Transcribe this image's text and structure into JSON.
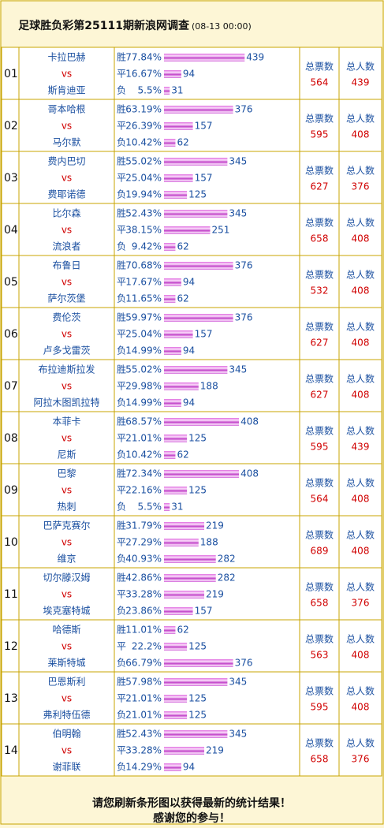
{
  "header": {
    "title": "足球胜负彩第25111期新浪网调查",
    "time": "(08-13 00:00)"
  },
  "outcome_labels": [
    "胜",
    "平",
    "负"
  ],
  "total_votes_label": "总票数",
  "total_people_label": "总人数",
  "vs": "vs",
  "matches": [
    {
      "no": "01",
      "home": "卡拉巴赫",
      "away": "斯肯迪亚",
      "pcts": [
        "77.84%",
        "16.67%",
        "5.5%"
      ],
      "counts": [
        439,
        94,
        31
      ],
      "total_votes": 564,
      "total_people": 439
    },
    {
      "no": "02",
      "home": "哥本哈根",
      "away": "马尔默",
      "pcts": [
        "63.19%",
        "26.39%",
        "10.42%"
      ],
      "counts": [
        376,
        157,
        62
      ],
      "total_votes": 595,
      "total_people": 408
    },
    {
      "no": "03",
      "home": "费内巴切",
      "away": "费耶诺德",
      "pcts": [
        "55.02%",
        "25.04%",
        "19.94%"
      ],
      "counts": [
        345,
        157,
        125
      ],
      "total_votes": 627,
      "total_people": 376
    },
    {
      "no": "04",
      "home": "比尔森",
      "away": "流浪者",
      "pcts": [
        "52.43%",
        "38.15%",
        "9.42%"
      ],
      "counts": [
        345,
        251,
        62
      ],
      "total_votes": 658,
      "total_people": 408
    },
    {
      "no": "05",
      "home": "布鲁日",
      "away": "萨尔茨堡",
      "pcts": [
        "70.68%",
        "17.67%",
        "11.65%"
      ],
      "counts": [
        376,
        94,
        62
      ],
      "total_votes": 532,
      "total_people": 408
    },
    {
      "no": "06",
      "home": "费伦茨",
      "away": "卢多戈雷茨",
      "pcts": [
        "59.97%",
        "25.04%",
        "14.99%"
      ],
      "counts": [
        376,
        157,
        94
      ],
      "total_votes": 627,
      "total_people": 408
    },
    {
      "no": "07",
      "home": "布拉迪斯拉发",
      "away": "阿拉木图凯拉特",
      "pcts": [
        "55.02%",
        "29.98%",
        "14.99%"
      ],
      "counts": [
        345,
        188,
        94
      ],
      "total_votes": 627,
      "total_people": 408
    },
    {
      "no": "08",
      "home": "本菲卡",
      "away": "尼斯",
      "pcts": [
        "68.57%",
        "21.01%",
        "10.42%"
      ],
      "counts": [
        408,
        125,
        62
      ],
      "total_votes": 595,
      "total_people": 439
    },
    {
      "no": "09",
      "home": "巴黎",
      "away": "热刺",
      "pcts": [
        "72.34%",
        "22.16%",
        "5.5%"
      ],
      "counts": [
        408,
        125,
        31
      ],
      "total_votes": 564,
      "total_people": 408
    },
    {
      "no": "10",
      "home": "巴萨克赛尔",
      "away": "维京",
      "pcts": [
        "31.79%",
        "27.29%",
        "40.93%"
      ],
      "counts": [
        219,
        188,
        282
      ],
      "total_votes": 689,
      "total_people": 408
    },
    {
      "no": "11",
      "home": "切尔滕汉姆",
      "away": "埃克塞特城",
      "pcts": [
        "42.86%",
        "33.28%",
        "23.86%"
      ],
      "counts": [
        282,
        219,
        157
      ],
      "total_votes": 658,
      "total_people": 376
    },
    {
      "no": "12",
      "home": "哈德斯",
      "away": "莱斯特城",
      "pcts": [
        "11.01%",
        "22.2%",
        "66.79%"
      ],
      "counts": [
        62,
        125,
        376
      ],
      "total_votes": 563,
      "total_people": 408
    },
    {
      "no": "13",
      "home": "巴恩斯利",
      "away": "弗利特伍德",
      "pcts": [
        "57.98%",
        "21.01%",
        "21.01%"
      ],
      "counts": [
        345,
        125,
        125
      ],
      "total_votes": 595,
      "total_people": 408
    },
    {
      "no": "14",
      "home": "伯明翰",
      "away": "谢菲联",
      "pcts": [
        "52.43%",
        "33.28%",
        "14.29%"
      ],
      "counts": [
        345,
        219,
        94
      ],
      "total_votes": 658,
      "total_people": 376
    }
  ],
  "footer": [
    "请您刷新条形图以获得最新的统计结果！",
    "感谢您的参与！"
  ]
}
